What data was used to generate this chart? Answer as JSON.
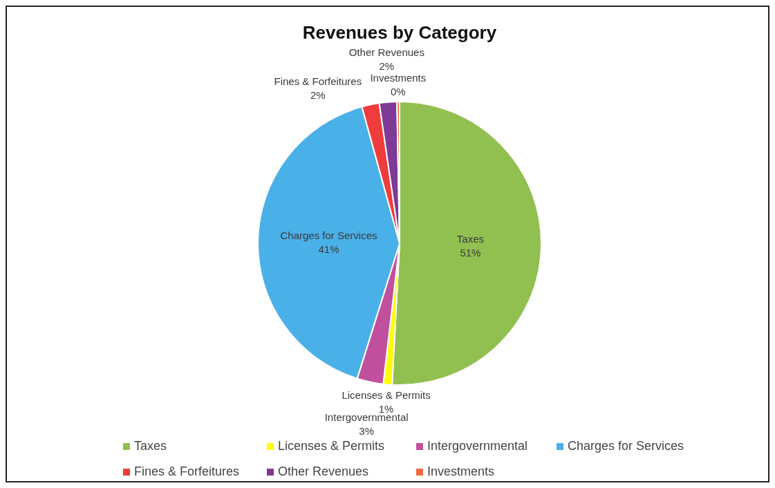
{
  "chart_data": {
    "type": "pie",
    "title": "Revenues by Category",
    "categories": [
      "Taxes",
      "Licenses & Permits",
      "Intergovernmental",
      "Charges for Services",
      "Fines & Forfeitures",
      "Other Revenues",
      "Investments"
    ],
    "values": [
      51,
      1,
      3,
      41,
      2,
      2,
      0.3
    ],
    "value_labels": [
      "51%",
      "1%",
      "3%",
      "41%",
      "2%",
      "2%",
      "0%"
    ],
    "colors": [
      "#92c050",
      "#ffff00",
      "#c0509e",
      "#4ab0e8",
      "#f03c3c",
      "#7e3a96",
      "#f06a40"
    ],
    "data_labels": true,
    "legend": "bottom"
  }
}
